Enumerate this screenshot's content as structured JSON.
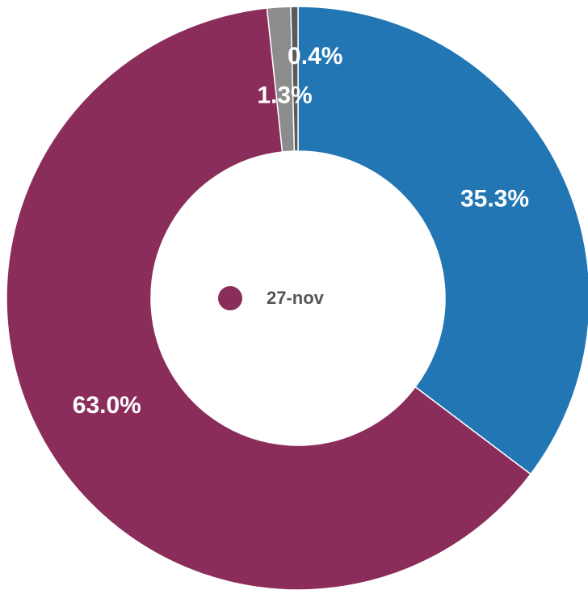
{
  "chart_data": {
    "type": "donut",
    "legend": "27-nov",
    "legend_color": "#8b2d5a",
    "values": [
      35.3,
      63.0,
      1.3,
      0.4
    ],
    "value_labels": [
      "35.3%",
      "63.0%",
      "1.3%",
      "0.4%"
    ],
    "colors": [
      "#2276b4",
      "#8b2d5a",
      "#8c8c8c",
      "#5a5a5a"
    ]
  }
}
